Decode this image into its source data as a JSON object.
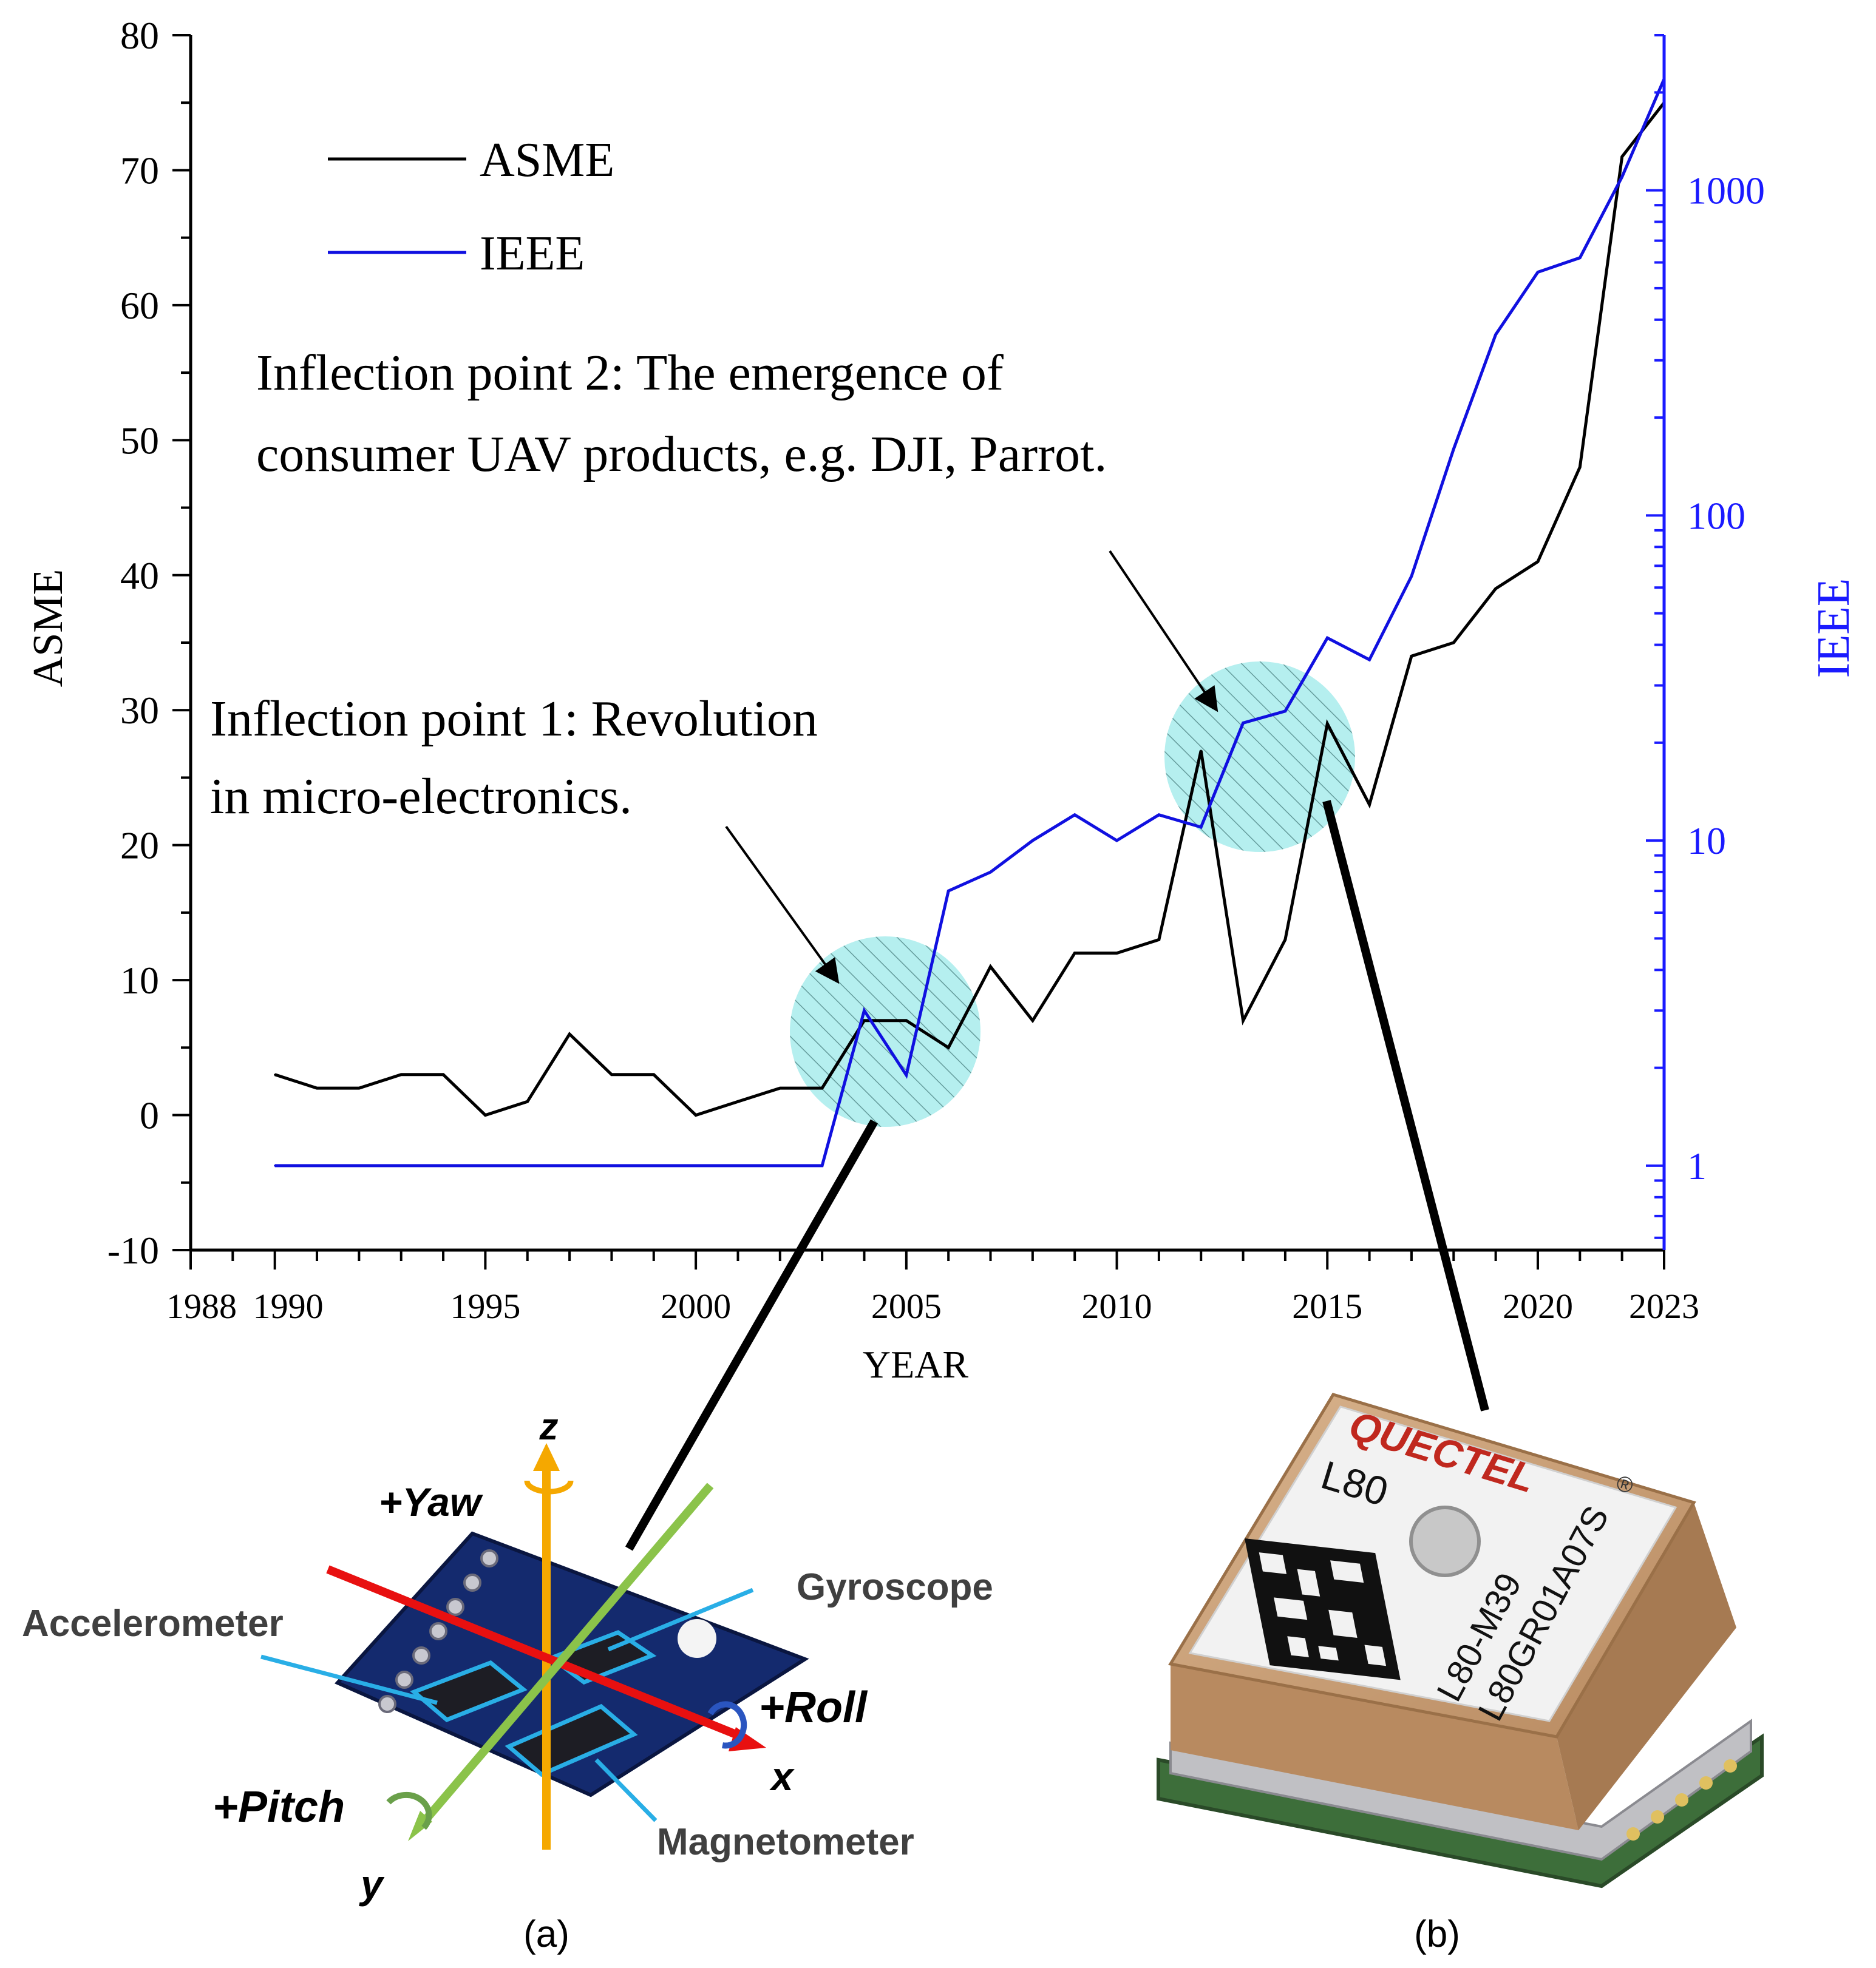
{
  "chart_data": {
    "type": "line",
    "xlabel": "YEAR",
    "ylabel_left": "ASME",
    "ylabel_right": "IEEE",
    "xlim": [
      1988,
      2023
    ],
    "ylim_left": [
      -10,
      80
    ],
    "ylim_right": [
      0.55,
      3000
    ],
    "right_axis_scale": "log",
    "grid": false,
    "legend_placement": "top-left",
    "x_ticks": [
      1988,
      1990,
      1995,
      2000,
      2005,
      2010,
      2015,
      2020,
      2023
    ],
    "x_tick_labels": [
      "1988",
      "1990",
      "1995",
      "2000",
      "2005",
      "2010",
      "2015",
      "2020",
      "2023"
    ],
    "y_left_ticks": [
      -10,
      0,
      10,
      20,
      30,
      40,
      50,
      60,
      70,
      80
    ],
    "y_left_tick_labels": [
      "-10",
      "0",
      "10",
      "20",
      "30",
      "40",
      "50",
      "60",
      "70",
      "80"
    ],
    "y_right_ticks": [
      1,
      10,
      100,
      1000
    ],
    "y_right_tick_labels": [
      "1",
      "10",
      "100",
      "1000"
    ],
    "series": [
      {
        "name": "ASME",
        "axis": "left",
        "color": "#000000",
        "x": [
          1990,
          1991,
          1992,
          1993,
          1994,
          1995,
          1996,
          1997,
          1998,
          1999,
          2000,
          2001,
          2002,
          2003,
          2004,
          2005,
          2006,
          2007,
          2008,
          2009,
          2010,
          2011,
          2012,
          2013,
          2014,
          2015,
          2016,
          2017,
          2018,
          2019,
          2020,
          2021,
          2022,
          2023
        ],
        "values": [
          3,
          2,
          2,
          3,
          3,
          0,
          1,
          6,
          3,
          3,
          0,
          1,
          2,
          2,
          7,
          7,
          5,
          11,
          7,
          12,
          12,
          13,
          27,
          7,
          13,
          29,
          23,
          34,
          35,
          39,
          41,
          48,
          71,
          75
        ]
      },
      {
        "name": "IEEE",
        "axis": "right",
        "color": "#1010e0",
        "x": [
          1990,
          1991,
          1992,
          1993,
          1994,
          1995,
          1996,
          1997,
          1998,
          1999,
          2000,
          2001,
          2002,
          2003,
          2004,
          2005,
          2006,
          2007,
          2008,
          2009,
          2010,
          2011,
          2012,
          2013,
          2014,
          2015,
          2016,
          2017,
          2018,
          2019,
          2020,
          2021,
          2022,
          2023
        ],
        "values": [
          1,
          1,
          1,
          1,
          1,
          1,
          1,
          1,
          1,
          1,
          1,
          1,
          1,
          1,
          3,
          1.9,
          7,
          8,
          10,
          12,
          10,
          12,
          11,
          23,
          25,
          42,
          36,
          65,
          160,
          360,
          560,
          620,
          1100,
          2200
        ]
      }
    ],
    "annotations": [
      {
        "text_lines": [
          "Inflection point 2: The emergence of",
          "consumer UAV products, e.g. DJI, Parrot."
        ]
      },
      {
        "text_lines": [
          "Inflection point 1: Revolution",
          "in micro-electronics."
        ]
      }
    ]
  },
  "colors": {
    "right_axis": "#1a1aff",
    "highlight_fill": "#a8ecec",
    "highlight_hatch": "#4a8a8a",
    "pcb_board": "#142a6e",
    "imu_axis_x": "#e81010",
    "imu_axis_y": "#8bc34a",
    "imu_axis_z": "#f5a800",
    "sensor_callout": "#29aee6",
    "gps_ceramic": "#c9a07a",
    "gps_label": "#f2f2f2",
    "gps_pcb": "#3d6e3a"
  },
  "imu_figure": {
    "axis_z": "z",
    "axis_x": "x",
    "axis_y": "y",
    "yaw": "+Yaw",
    "roll": "+Roll",
    "pitch": "+Pitch",
    "gyroscope": "Gyroscope",
    "accelerometer": "Accelerometer",
    "magnetometer": "Magnetometer",
    "caption": "(a)"
  },
  "gps_figure": {
    "brand": "QUECTEL",
    "registered": "®",
    "model": "L80",
    "part_line1": "L80-M39",
    "part_line2": "L80GR01A07S",
    "caption": "(b)"
  }
}
